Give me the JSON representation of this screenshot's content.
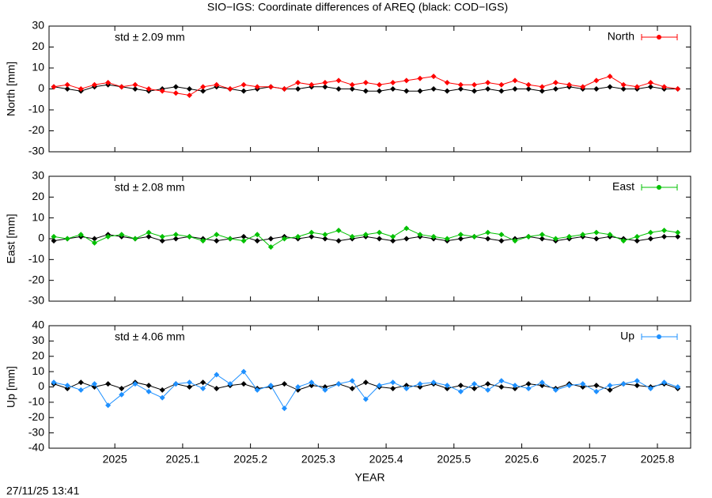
{
  "title": "SIO−IGS: Coordinate differences of AREQ (black: COD−IGS)",
  "timestamp": "27/11/25 13:41",
  "chart_data": [
    {
      "type": "line",
      "ylabel": "North [mm]",
      "annotation": "std ± 2.09 mm",
      "xlim": [
        2024.903,
        2025.849
      ],
      "ylim": [
        -30,
        30
      ],
      "yticks": [
        -30,
        -20,
        -10,
        0,
        10,
        20,
        30
      ],
      "legend": "top-right",
      "x": [
        2024.91,
        2024.93,
        2024.95,
        2024.97,
        2024.99,
        2025.01,
        2025.03,
        2025.05,
        2025.07,
        2025.09,
        2025.11,
        2025.13,
        2025.15,
        2025.17,
        2025.19,
        2025.21,
        2025.23,
        2025.25,
        2025.27,
        2025.29,
        2025.31,
        2025.33,
        2025.35,
        2025.37,
        2025.39,
        2025.41,
        2025.43,
        2025.45,
        2025.47,
        2025.49,
        2025.51,
        2025.53,
        2025.55,
        2025.57,
        2025.59,
        2025.61,
        2025.63,
        2025.65,
        2025.67,
        2025.69,
        2025.71,
        2025.73,
        2025.75,
        2025.77,
        2025.79,
        2025.81,
        2025.83
      ],
      "series": [
        {
          "color": "#000000",
          "values": [
            1,
            0,
            -1,
            1,
            2,
            1,
            0,
            -1,
            0,
            1,
            0,
            -1,
            1,
            0,
            -1,
            0,
            1,
            0,
            0,
            1,
            1,
            0,
            0,
            -1,
            -1,
            0,
            -1,
            -1,
            0,
            -1,
            0,
            -1,
            0,
            -1,
            0,
            0,
            -1,
            0,
            1,
            0,
            0,
            1,
            0,
            0,
            1,
            0,
            0
          ]
        },
        {
          "name": "North",
          "color": "#ff0000",
          "values": [
            1,
            2,
            0,
            2,
            3,
            1,
            2,
            0,
            -1,
            -2,
            -3,
            1,
            2,
            0,
            2,
            1,
            1,
            0,
            3,
            2,
            3,
            4,
            2,
            3,
            2,
            3,
            4,
            5,
            6,
            3,
            2,
            2,
            3,
            2,
            4,
            2,
            1,
            3,
            2,
            1,
            4,
            6,
            2,
            1,
            3,
            1,
            0
          ]
        }
      ]
    },
    {
      "type": "line",
      "ylabel": "East [mm]",
      "annotation": "std ± 2.08 mm",
      "xlim": [
        2024.903,
        2025.849
      ],
      "ylim": [
        -30,
        30
      ],
      "yticks": [
        -30,
        -20,
        -10,
        0,
        10,
        20,
        30
      ],
      "legend": "top-right",
      "x": [
        2024.91,
        2024.93,
        2024.95,
        2024.97,
        2024.99,
        2025.01,
        2025.03,
        2025.05,
        2025.07,
        2025.09,
        2025.11,
        2025.13,
        2025.15,
        2025.17,
        2025.19,
        2025.21,
        2025.23,
        2025.25,
        2025.27,
        2025.29,
        2025.31,
        2025.33,
        2025.35,
        2025.37,
        2025.39,
        2025.41,
        2025.43,
        2025.45,
        2025.47,
        2025.49,
        2025.51,
        2025.53,
        2025.55,
        2025.57,
        2025.59,
        2025.61,
        2025.63,
        2025.65,
        2025.67,
        2025.69,
        2025.71,
        2025.73,
        2025.75,
        2025.77,
        2025.79,
        2025.81,
        2025.83
      ],
      "series": [
        {
          "color": "#000000",
          "values": [
            -1,
            0,
            1,
            0,
            2,
            1,
            0,
            1,
            -1,
            0,
            1,
            0,
            -1,
            0,
            1,
            -1,
            0,
            1,
            0,
            1,
            0,
            -1,
            0,
            1,
            0,
            -1,
            0,
            1,
            0,
            -1,
            0,
            1,
            0,
            -1,
            0,
            1,
            0,
            -1,
            0,
            1,
            0,
            1,
            0,
            -1,
            0,
            1,
            1
          ]
        },
        {
          "name": "East",
          "color": "#00c000",
          "values": [
            1,
            0,
            2,
            -2,
            1,
            2,
            0,
            3,
            1,
            2,
            1,
            -1,
            2,
            0,
            -1,
            2,
            -4,
            0,
            1,
            3,
            2,
            4,
            1,
            2,
            3,
            1,
            5,
            2,
            1,
            0,
            2,
            1,
            3,
            2,
            -1,
            1,
            2,
            0,
            1,
            2,
            3,
            2,
            -1,
            1,
            3,
            4,
            3
          ]
        }
      ]
    },
    {
      "type": "line",
      "ylabel": "Up [mm]",
      "xlabel": "YEAR",
      "annotation": "std ± 4.06 mm",
      "xlim": [
        2024.903,
        2025.849
      ],
      "ylim": [
        -40,
        40
      ],
      "yticks": [
        -40,
        -30,
        -20,
        -10,
        0,
        10,
        20,
        30,
        40
      ],
      "legend": "top-right",
      "xticks": [
        2025,
        2025.1,
        2025.2,
        2025.3,
        2025.4,
        2025.5,
        2025.6,
        2025.7,
        2025.8
      ],
      "x": [
        2024.91,
        2024.93,
        2024.95,
        2024.97,
        2024.99,
        2025.01,
        2025.03,
        2025.05,
        2025.07,
        2025.09,
        2025.11,
        2025.13,
        2025.15,
        2025.17,
        2025.19,
        2025.21,
        2025.23,
        2025.25,
        2025.27,
        2025.29,
        2025.31,
        2025.33,
        2025.35,
        2025.37,
        2025.39,
        2025.41,
        2025.43,
        2025.45,
        2025.47,
        2025.49,
        2025.51,
        2025.53,
        2025.55,
        2025.57,
        2025.59,
        2025.61,
        2025.63,
        2025.65,
        2025.67,
        2025.69,
        2025.71,
        2025.73,
        2025.75,
        2025.77,
        2025.79,
        2025.81,
        2025.83
      ],
      "series": [
        {
          "color": "#000000",
          "values": [
            2,
            -1,
            3,
            0,
            2,
            -1,
            3,
            1,
            -2,
            2,
            0,
            3,
            -1,
            1,
            2,
            -1,
            0,
            2,
            -2,
            1,
            0,
            2,
            -1,
            3,
            0,
            -1,
            1,
            0,
            2,
            -1,
            1,
            -1,
            2,
            0,
            -1,
            2,
            1,
            -1,
            2,
            0,
            1,
            -2,
            2,
            1,
            0,
            2,
            -1
          ]
        },
        {
          "name": "Up",
          "color": "#1e90ff",
          "values": [
            3,
            1,
            -2,
            2,
            -12,
            -5,
            2,
            -3,
            -7,
            2,
            3,
            -1,
            8,
            2,
            10,
            -2,
            1,
            -14,
            0,
            3,
            -2,
            2,
            4,
            -8,
            1,
            3,
            -1,
            2,
            3,
            1,
            -3,
            2,
            -2,
            4,
            1,
            -1,
            3,
            -2,
            1,
            2,
            -3,
            1,
            2,
            4,
            -1,
            3,
            0
          ]
        }
      ]
    }
  ]
}
